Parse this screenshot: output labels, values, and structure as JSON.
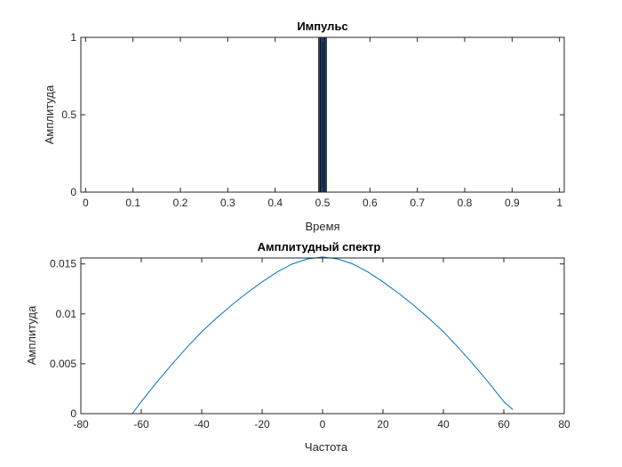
{
  "chart_data": [
    {
      "type": "bar",
      "title": "Импульс",
      "xlabel": "Время",
      "ylabel": "Амплитуда",
      "xlim": [
        -0.01,
        1.01
      ],
      "ylim": [
        0,
        1
      ],
      "xticks": [
        0,
        0.1,
        0.2,
        0.3,
        0.4,
        0.5,
        0.6,
        0.7,
        0.8,
        0.9,
        1
      ],
      "xtick_labels": [
        "0",
        "0.1",
        "0.2",
        "0.3",
        "0.4",
        "0.5",
        "0.6",
        "0.7",
        "0.8",
        "0.9",
        "1"
      ],
      "yticks": [
        0,
        0.5,
        1
      ],
      "ytick_labels": [
        "0",
        "0.5",
        "1"
      ],
      "bar_width": 0.004,
      "x": [
        0.494,
        0.498,
        0.502,
        0.506
      ],
      "values": [
        1,
        1,
        1,
        1
      ],
      "bar_color": "#1f5fa6",
      "edge_color": "#000000",
      "grid": false,
      "legend": null
    },
    {
      "type": "line",
      "title": "Амплитудный спектр",
      "xlabel": "Частота",
      "ylabel": "Амплитуда",
      "xlim": [
        -80,
        80
      ],
      "ylim": [
        0,
        0.0156
      ],
      "xticks": [
        -80,
        -60,
        -40,
        -20,
        0,
        20,
        40,
        60,
        80
      ],
      "xtick_labels": [
        "-80",
        "-60",
        "-40",
        "-20",
        "0",
        "20",
        "40",
        "60",
        "80"
      ],
      "yticks": [
        0,
        0.005,
        0.01,
        0.015
      ],
      "ytick_labels": [
        "0",
        "0.005",
        "0.01",
        "0.015"
      ],
      "x": [
        -63,
        -60,
        -55,
        -50,
        -45,
        -40,
        -35,
        -30,
        -25,
        -20,
        -15,
        -10,
        -5,
        0,
        5,
        10,
        15,
        20,
        25,
        30,
        35,
        40,
        45,
        50,
        55,
        60,
        63
      ],
      "y": [
        0.0,
        0.0012,
        0.0031,
        0.0049,
        0.0066,
        0.0082,
        0.0096,
        0.0109,
        0.0121,
        0.0132,
        0.0142,
        0.015,
        0.0155,
        0.0157,
        0.0155,
        0.015,
        0.0142,
        0.0132,
        0.0121,
        0.0109,
        0.0096,
        0.0082,
        0.0066,
        0.0049,
        0.0031,
        0.0012,
        0.0004
      ],
      "line_color": "#0072bd",
      "grid": false,
      "legend": null
    }
  ]
}
